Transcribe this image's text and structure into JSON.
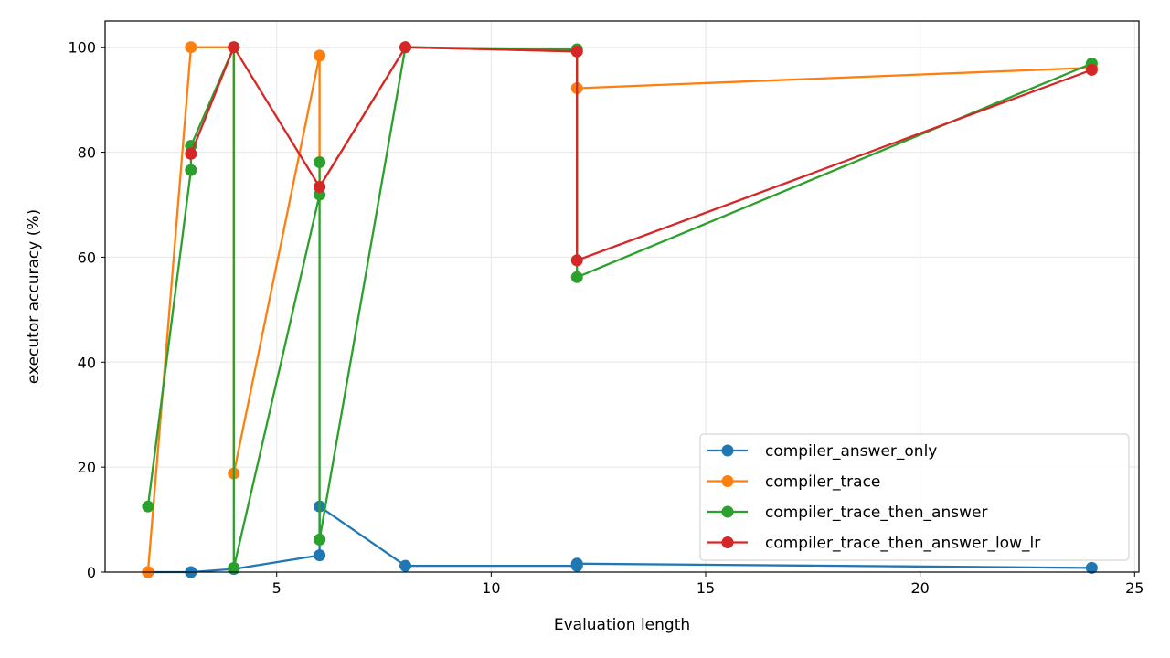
{
  "chart_data": {
    "type": "line",
    "xlabel": "Evaluation length",
    "ylabel": "executor accuracy (%)",
    "xlim": [
      1.0,
      25.1
    ],
    "ylim": [
      0,
      105
    ],
    "xticks": [
      5,
      10,
      15,
      20,
      25
    ],
    "yticks": [
      0,
      20,
      40,
      60,
      80,
      100
    ],
    "grid": true,
    "legend_position": "lower-right",
    "series": [
      {
        "name": "compiler_answer_only",
        "color": "#1f77b4",
        "x": [
          2,
          3,
          4,
          4,
          6,
          6,
          8,
          12,
          12,
          24
        ],
        "y": [
          0.0,
          0.0,
          0.6,
          0.6,
          3.2,
          12.5,
          1.2,
          1.2,
          1.6,
          0.8
        ]
      },
      {
        "name": "compiler_trace",
        "color": "#ff7f0e",
        "x": [
          2,
          3,
          4,
          4,
          6,
          6,
          8,
          12,
          12,
          24
        ],
        "y": [
          0.0,
          100.0,
          100.0,
          18.8,
          98.4,
          73.4,
          100.0,
          99.2,
          92.2,
          96.1
        ]
      },
      {
        "name": "compiler_trace_then_answer",
        "color": "#2ca02c",
        "x": [
          2,
          3,
          3,
          4,
          4,
          6,
          6,
          6,
          6,
          8,
          12,
          12,
          24
        ],
        "y": [
          12.5,
          76.6,
          81.2,
          100.0,
          0.8,
          71.9,
          78.1,
          6.2,
          6.2,
          100.0,
          99.6,
          56.2,
          96.9
        ]
      },
      {
        "name": "compiler_trace_then_answer_low_lr",
        "color": "#d62728",
        "x": [
          3,
          4,
          6,
          8,
          12,
          12,
          24
        ],
        "y": [
          79.7,
          100.0,
          73.4,
          100.0,
          99.2,
          59.4,
          95.7
        ]
      }
    ]
  }
}
